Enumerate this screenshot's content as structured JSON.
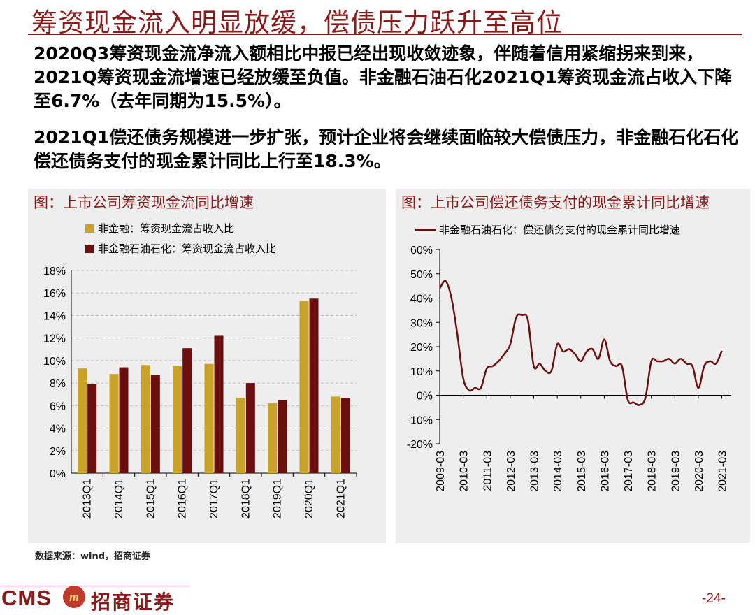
{
  "slide": {
    "title": "筹资现金流入明显放缓，偿债压力跃升至高位",
    "paragraph1": "2020Q3筹资现金流净流入额相比中报已经出现收敛迹象，伴随着信用紧缩拐来到来，2021Q筹资现金流增速已经放缓至负值。非金融石油石化2021Q1筹资现金流占收入下降至6.7%（去年同期为15.5%）。",
    "paragraph2": "2021Q1偿还债务规模进一步扩张，预计企业将会继续面临较大偿债压力，非金融石化石化偿还债务支付的现金累计同比上行至18.3%。",
    "source": "数据来源：wind，招商证券",
    "page_number": "-24-",
    "logo_text": "CMS",
    "logo_badge": "m",
    "logo_cn": "招商证券"
  },
  "colors": {
    "accent": "#8b1a1a",
    "bar_series_1": "#c9a227",
    "bar_series_2": "#6b0f0f",
    "line_series": "#6b0f0f",
    "panel_bg": "#eeeeee"
  },
  "chart_data": [
    {
      "type": "bar",
      "title": "图：上市公司筹资现金流同比增速",
      "categories": [
        "2013Q1",
        "2014Q1",
        "2015Q1",
        "2016Q1",
        "2017Q1",
        "2018Q1",
        "2019Q1",
        "2020Q1",
        "2021Q1"
      ],
      "series": [
        {
          "name": "非金融：筹资现金流占收入比",
          "values": [
            9.3,
            8.8,
            9.6,
            9.5,
            9.7,
            6.7,
            6.2,
            15.3,
            6.8
          ]
        },
        {
          "name": "非金融石油石化：筹资现金流占收入比",
          "values": [
            7.9,
            9.4,
            8.7,
            11.1,
            12.2,
            8.0,
            6.5,
            15.5,
            6.7
          ]
        }
      ],
      "ylim": [
        0,
        18
      ],
      "yticks": [
        "0%",
        "2%",
        "4%",
        "6%",
        "8%",
        "10%",
        "12%",
        "14%",
        "16%",
        "18%"
      ],
      "grid": true,
      "legend": "top-left"
    },
    {
      "type": "line",
      "title": "图：上市公司偿还债务支付的现金累计同比增速",
      "x_ticks": [
        "2009-03",
        "2010-03",
        "2011-03",
        "2012-03",
        "2013-03",
        "2014-03",
        "2015-03",
        "2016-03",
        "2017-03",
        "2018-03",
        "2019-03",
        "2020-03",
        "2021-03"
      ],
      "series": [
        {
          "name": "非金融石油石化：偿还债务支付的现金累计同比增速",
          "x": [
            "2009-03",
            "2009-06",
            "2009-09",
            "2009-12",
            "2010-03",
            "2010-06",
            "2010-09",
            "2010-12",
            "2011-03",
            "2011-06",
            "2011-09",
            "2011-12",
            "2012-03",
            "2012-06",
            "2012-09",
            "2012-12",
            "2013-03",
            "2013-06",
            "2013-09",
            "2013-12",
            "2014-03",
            "2014-06",
            "2014-09",
            "2014-12",
            "2015-03",
            "2015-06",
            "2015-09",
            "2015-12",
            "2016-03",
            "2016-06",
            "2016-09",
            "2016-12",
            "2017-03",
            "2017-06",
            "2017-09",
            "2017-12",
            "2018-03",
            "2018-06",
            "2018-09",
            "2018-12",
            "2019-03",
            "2019-06",
            "2019-09",
            "2019-12",
            "2020-03",
            "2020-06",
            "2020-09",
            "2020-12",
            "2021-03"
          ],
          "values": [
            44,
            47,
            40,
            25,
            7,
            2,
            3,
            3,
            11,
            12,
            14,
            17,
            21,
            32,
            33,
            31,
            12,
            13,
            10,
            10,
            21,
            18,
            19,
            17,
            14,
            18,
            19,
            15,
            23,
            14,
            12,
            12,
            -2,
            -3,
            -4,
            -1,
            14,
            14,
            14,
            15,
            13,
            15,
            13,
            12,
            3,
            12,
            14,
            13,
            18.3
          ]
        }
      ],
      "ylim": [
        -20,
        60
      ],
      "yticks": [
        "-20%",
        "-10%",
        "0%",
        "10%",
        "20%",
        "30%",
        "40%",
        "50%",
        "60%"
      ],
      "grid": false,
      "legend": "top"
    }
  ]
}
